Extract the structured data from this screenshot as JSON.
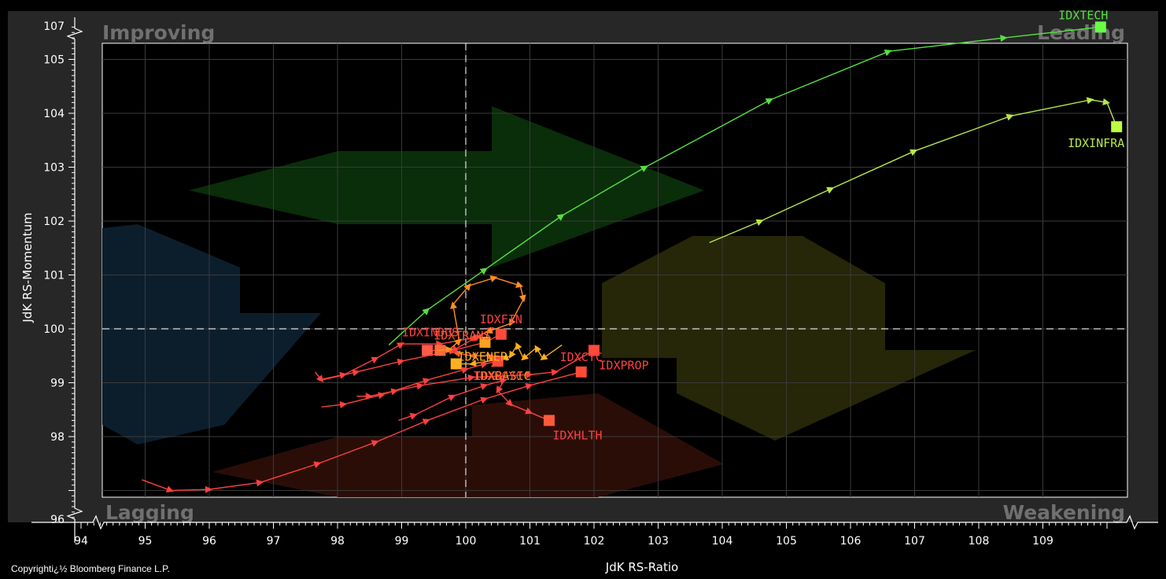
{
  "chart_data": {
    "type": "scatter",
    "title": "",
    "xlabel": "JdK RS-Ratio",
    "ylabel": "JdK RS-Momentum",
    "xlim": [
      94,
      110
    ],
    "ylim": [
      96,
      107
    ],
    "x_ticks": [
      "94",
      "95",
      "96",
      "97",
      "98",
      "99",
      "100",
      "101",
      "102",
      "103",
      "104",
      "105",
      "106",
      "107",
      "108",
      "109"
    ],
    "y_ticks": [
      "96",
      "98",
      "99",
      "100",
      "101",
      "102",
      "103",
      "104",
      "105",
      "107"
    ],
    "quadrants": {
      "top_left": "Improving",
      "top_right": "Leading",
      "bottom_left": "Lagging",
      "bottom_right": "Weakening"
    },
    "copyright": "Copyrighti¿½ Bloomberg Finance L.P.",
    "grid": true,
    "center": [
      100,
      100
    ],
    "series": [
      {
        "name": "IDXTECH",
        "color": "#55e040",
        "head_color": "#66ff44",
        "points": [
          [
            98.8,
            99.7
          ],
          [
            99.4,
            100.35
          ],
          [
            100.3,
            101.1
          ],
          [
            101.5,
            102.1
          ],
          [
            102.8,
            103.0
          ],
          [
            104.75,
            104.25
          ],
          [
            106.6,
            105.15
          ],
          [
            108.4,
            105.4
          ],
          [
            109.9,
            105.6
          ]
        ],
        "label_pos": "top"
      },
      {
        "name": "IDXINFRA",
        "color": "#b8e84a",
        "head_color": "#bbff44",
        "points": [
          [
            103.8,
            101.6
          ],
          [
            104.6,
            102.0
          ],
          [
            105.7,
            102.6
          ],
          [
            107.0,
            103.3
          ],
          [
            108.5,
            103.95
          ],
          [
            109.75,
            104.25
          ],
          [
            110.0,
            104.2
          ],
          [
            110.15,
            103.75
          ]
        ],
        "label_pos": "below"
      },
      {
        "name": "IDXINDUS",
        "color": "#ff4040",
        "head_color": "#ff5a4a",
        "points": [
          [
            97.7,
            99.05
          ],
          [
            98.1,
            99.15
          ],
          [
            98.6,
            99.45
          ],
          [
            99.0,
            99.72
          ],
          [
            99.6,
            99.72
          ],
          [
            100.2,
            99.85
          ],
          [
            100.4,
            100.0
          ],
          [
            100.1,
            99.8
          ],
          [
            99.8,
            99.6
          ],
          [
            99.4,
            99.6
          ]
        ],
        "label_pos": "top"
      },
      {
        "name": "IDXFIN",
        "color": "#ff4040",
        "head_color": "#ff4a3a",
        "points": [
          [
            97.65,
            99.2
          ],
          [
            97.75,
            99.05
          ],
          [
            98.3,
            99.2
          ],
          [
            99.0,
            99.4
          ],
          [
            99.8,
            99.6
          ],
          [
            100.3,
            99.75
          ],
          [
            100.55,
            99.9
          ]
        ],
        "label_pos": "top"
      },
      {
        "name": "IDXTRANS",
        "color": "#ff5a30",
        "head_color": "#ff6a3a",
        "points": [
          [
            100.4,
            99.3
          ],
          [
            100.5,
            99.4
          ],
          [
            100.35,
            99.5
          ],
          [
            100.1,
            99.5
          ],
          [
            99.85,
            99.55
          ],
          [
            99.6,
            99.6
          ]
        ],
        "label_pos": "top"
      },
      {
        "name": "IDXENER",
        "color": "#ffb020",
        "head_color": "#ffb020",
        "points": [
          [
            101.5,
            99.7
          ],
          [
            101.2,
            99.45
          ],
          [
            101.1,
            99.65
          ],
          [
            100.9,
            99.45
          ],
          [
            100.8,
            99.7
          ],
          [
            100.7,
            99.5
          ],
          [
            100.6,
            99.45
          ],
          [
            100.1,
            99.35
          ],
          [
            99.85,
            99.35
          ]
        ],
        "label_pos": "right"
      },
      {
        "name": "IDXBASIC",
        "color": "#ff9020",
        "head_color": "#ffa020",
        "points": [
          [
            99.55,
            99.6
          ],
          [
            99.75,
            99.62
          ],
          [
            99.9,
            99.78
          ],
          [
            99.8,
            100.45
          ],
          [
            100.05,
            100.8
          ],
          [
            100.45,
            100.95
          ],
          [
            100.85,
            100.8
          ],
          [
            100.9,
            100.55
          ],
          [
            100.7,
            100.1
          ],
          [
            100.35,
            99.95
          ],
          [
            100.3,
            99.75
          ]
        ],
        "label_pos": "below"
      },
      {
        "name": "IDXPROP",
        "color": "#ff4040",
        "head_color": "#ff4a3a",
        "points": [
          [
            98.3,
            98.75
          ],
          [
            98.5,
            98.75
          ],
          [
            98.9,
            98.85
          ],
          [
            99.3,
            98.95
          ],
          [
            100.1,
            99.1
          ],
          [
            101.0,
            99.15
          ],
          [
            101.4,
            99.2
          ],
          [
            102.0,
            99.6
          ]
        ],
        "label_pos": "below"
      },
      {
        "name": "IDXNCYC",
        "color": "#ff4040",
        "head_color": "#ff4a3a",
        "points": [
          [
            97.75,
            98.55
          ],
          [
            98.1,
            98.6
          ],
          [
            98.7,
            98.78
          ],
          [
            99.4,
            99.05
          ],
          [
            100.0,
            99.25
          ],
          [
            100.3,
            99.35
          ],
          [
            100.5,
            99.4
          ]
        ],
        "label_pos": "below"
      },
      {
        "name": "IDXHLTH",
        "color": "#ff4040",
        "head_color": "#ff5a3a",
        "points": [
          [
            98.95,
            98.3
          ],
          [
            99.2,
            98.4
          ],
          [
            99.8,
            98.75
          ],
          [
            100.3,
            98.95
          ],
          [
            100.6,
            99.05
          ],
          [
            100.5,
            98.85
          ],
          [
            100.7,
            98.6
          ],
          [
            101.0,
            98.45
          ],
          [
            101.3,
            98.3
          ]
        ],
        "label_pos": "below"
      },
      {
        "name": "IDXCYC",
        "color": "#ff4040",
        "head_color": "#ff4a3a",
        "points": [
          [
            94.95,
            97.2
          ],
          [
            95.4,
            97.0
          ],
          [
            96.0,
            97.02
          ],
          [
            96.8,
            97.15
          ],
          [
            97.7,
            97.5
          ],
          [
            98.6,
            97.9
          ],
          [
            99.4,
            98.3
          ],
          [
            100.3,
            98.7
          ],
          [
            101.0,
            98.95
          ],
          [
            101.8,
            99.2
          ]
        ],
        "label_pos": "top"
      }
    ]
  }
}
